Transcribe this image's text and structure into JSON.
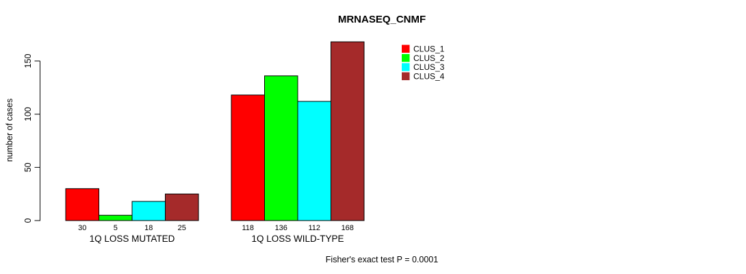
{
  "chart_data": {
    "type": "bar",
    "title": "MRNASEQ_CNMF",
    "ylabel": "number of cases",
    "xlabel": "",
    "ylim": [
      0,
      150
    ],
    "yticks": [
      0,
      50,
      100,
      150
    ],
    "grid": false,
    "legend_position": "top-right",
    "categories": [
      "1Q LOSS MUTATED",
      "1Q LOSS WILD-TYPE"
    ],
    "series": [
      {
        "name": "CLUS_1",
        "color": "#FF0000",
        "values": [
          30,
          118
        ]
      },
      {
        "name": "CLUS_2",
        "color": "#00FF00",
        "values": [
          5,
          136
        ]
      },
      {
        "name": "CLUS_3",
        "color": "#00FFFF",
        "values": [
          18,
          112
        ]
      },
      {
        "name": "CLUS_4",
        "color": "#A52A2A",
        "values": [
          25,
          168
        ]
      }
    ],
    "bar_value_labels": [
      [
        30,
        5,
        18,
        25
      ],
      [
        118,
        136,
        112,
        168
      ]
    ],
    "annotation": "Fisher's exact test P = 0.0001",
    "colors": {
      "bar_border": "#000000",
      "axis": "#000000",
      "text": "#000000",
      "background": "#FFFFFF"
    }
  }
}
